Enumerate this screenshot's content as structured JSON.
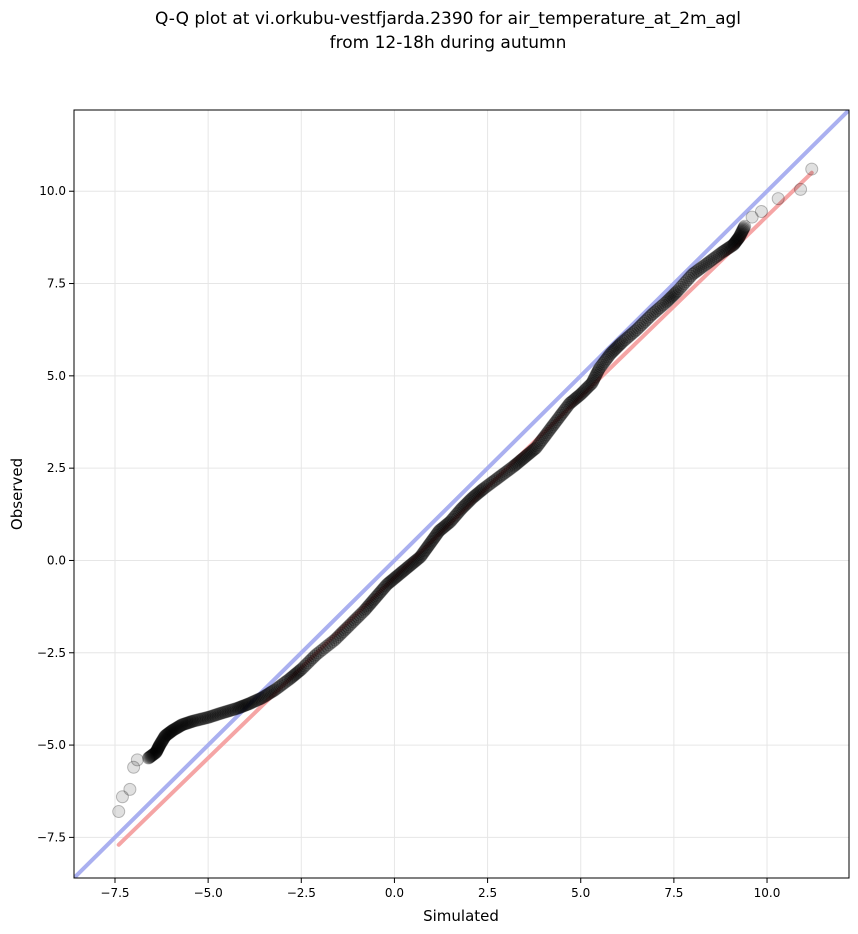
{
  "chart_data": {
    "type": "scatter",
    "title": "Q-Q plot at vi.orkubu-vestfjarda.2390 for air_temperature_at_2m_agl",
    "subtitle": "from 12-18h during autumn",
    "xlabel": "Simulated",
    "ylabel": "Observed",
    "xlim": [
      -8.6,
      12.2
    ],
    "ylim": [
      -8.6,
      12.2
    ],
    "x_ticks": [
      -7.5,
      -5.0,
      -2.5,
      0.0,
      2.5,
      5.0,
      7.5,
      10.0
    ],
    "y_ticks": [
      -7.5,
      -5.0,
      -2.5,
      0.0,
      2.5,
      5.0,
      7.5,
      10.0
    ],
    "x_tick_labels": [
      "−7.5",
      "−5.0",
      "−2.5",
      "0.0",
      "2.5",
      "5.0",
      "7.5",
      "10.0"
    ],
    "y_tick_labels": [
      "−7.5",
      "−5.0",
      "−2.5",
      "0.0",
      "2.5",
      "5.0",
      "7.5",
      "10.0"
    ],
    "grid": true,
    "identity_line": {
      "x": [
        -8.6,
        12.2
      ],
      "y": [
        -8.6,
        12.2
      ],
      "color": "#aab0f0"
    },
    "fit_line": {
      "x": [
        -7.4,
        11.2
      ],
      "y": [
        -7.7,
        10.5
      ],
      "color": "#f5a5a5"
    },
    "quantile_points": [
      [
        -7.4,
        -6.8
      ],
      [
        -7.3,
        -6.4
      ],
      [
        -7.1,
        -6.2
      ],
      [
        -7.0,
        -5.6
      ],
      [
        -6.9,
        -5.4
      ],
      [
        -6.6,
        -5.35
      ],
      [
        -6.4,
        -5.2
      ],
      [
        -6.3,
        -5.0
      ],
      [
        -6.15,
        -4.75
      ],
      [
        -5.95,
        -4.6
      ],
      [
        -5.7,
        -4.45
      ],
      [
        -5.4,
        -4.35
      ],
      [
        -5.0,
        -4.25
      ],
      [
        -4.6,
        -4.12
      ],
      [
        -4.2,
        -4.0
      ],
      [
        -3.9,
        -3.88
      ],
      [
        -3.55,
        -3.72
      ],
      [
        -3.2,
        -3.5
      ],
      [
        -2.8,
        -3.2
      ],
      [
        -2.5,
        -2.95
      ],
      [
        -2.1,
        -2.55
      ],
      [
        -1.6,
        -2.15
      ],
      [
        -1.2,
        -1.75
      ],
      [
        -0.8,
        -1.35
      ],
      [
        -0.5,
        -1.0
      ],
      [
        -0.2,
        -0.65
      ],
      [
        0.1,
        -0.4
      ],
      [
        0.4,
        -0.15
      ],
      [
        0.7,
        0.1
      ],
      [
        0.95,
        0.45
      ],
      [
        1.2,
        0.8
      ],
      [
        1.5,
        1.05
      ],
      [
        1.8,
        1.4
      ],
      [
        2.1,
        1.7
      ],
      [
        2.4,
        1.95
      ],
      [
        2.8,
        2.25
      ],
      [
        3.2,
        2.55
      ],
      [
        3.5,
        2.8
      ],
      [
        3.8,
        3.05
      ],
      [
        4.1,
        3.45
      ],
      [
        4.4,
        3.85
      ],
      [
        4.7,
        4.25
      ],
      [
        5.0,
        4.5
      ],
      [
        5.3,
        4.8
      ],
      [
        5.5,
        5.2
      ],
      [
        5.8,
        5.6
      ],
      [
        6.1,
        5.9
      ],
      [
        6.5,
        6.25
      ],
      [
        6.9,
        6.65
      ],
      [
        7.3,
        7.0
      ],
      [
        7.6,
        7.3
      ],
      [
        8.0,
        7.75
      ],
      [
        8.4,
        8.05
      ],
      [
        8.8,
        8.35
      ],
      [
        9.1,
        8.55
      ],
      [
        9.25,
        8.75
      ],
      [
        9.4,
        9.05
      ],
      [
        9.6,
        9.3
      ],
      [
        9.85,
        9.45
      ],
      [
        10.3,
        9.8
      ],
      [
        10.9,
        10.05
      ],
      [
        11.2,
        10.6
      ]
    ]
  }
}
